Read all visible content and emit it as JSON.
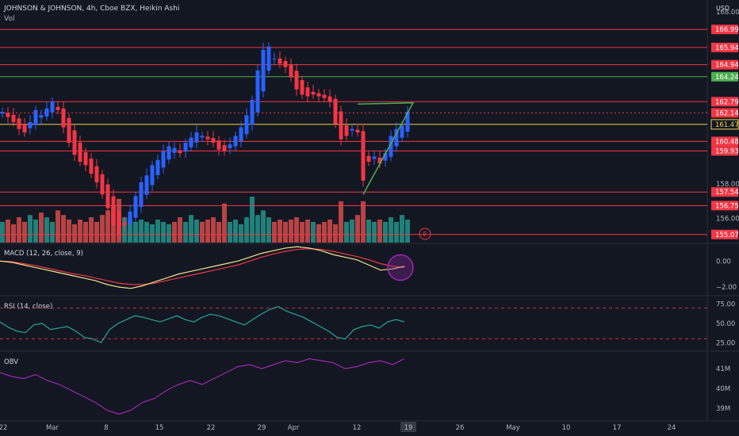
{
  "header": {
    "symbol_line": "JOHNSON & JOHNSON, 4h, Cboe BZX, Heikin Ashi",
    "vol_label": "Vol",
    "currency": "USD"
  },
  "colors": {
    "background": "#131722",
    "up": "#2962ff",
    "down": "#f23645",
    "vol_up": "#26a69a",
    "vol_down": "#ef5350",
    "level_red": "#f23645",
    "level_green": "#4caf50",
    "level_yellow": "#f2d44a",
    "pattern_green": "#4caf50",
    "macd": "#f0e68c",
    "signal": "#f23645",
    "rsi": "#26a69a",
    "obv": "#9c27b0",
    "highlight": "#9c27b0"
  },
  "chart_data": {
    "type": "candlestick",
    "price_axis": {
      "ylim": [
        154.6,
        168.7
      ],
      "ticks": [
        "168.00",
        "158.00",
        "156.00"
      ]
    },
    "x_axis": {
      "ticks": [
        "22",
        "Mar",
        "8",
        "15",
        "22",
        "29",
        "Apr",
        "12",
        "19",
        "26",
        "May",
        "10",
        "17",
        "24"
      ],
      "highlight_tick": "19"
    },
    "levels": [
      {
        "label": "166.99",
        "value": 166.99,
        "color": "red"
      },
      {
        "label": "165.94",
        "value": 165.94,
        "color": "red"
      },
      {
        "label": "164.94",
        "value": 164.94,
        "color": "red"
      },
      {
        "label": "164.24",
        "value": 164.24,
        "color": "green"
      },
      {
        "label": "162.79",
        "value": 162.79,
        "color": "red"
      },
      {
        "label": "162.14",
        "value": 162.14,
        "color": "red",
        "dashed": true
      },
      {
        "label": "161.47",
        "value": 161.47,
        "color": "yellow"
      },
      {
        "label": "160.48",
        "value": 160.48,
        "color": "red"
      },
      {
        "label": "159.93",
        "value": 159.93,
        "color": "red"
      },
      {
        "label": "157.54",
        "value": 157.54,
        "color": "red"
      },
      {
        "label": "156.75",
        "value": 156.75,
        "color": "red"
      },
      {
        "label": "155.07",
        "value": 155.07,
        "color": "red"
      }
    ],
    "price_series": [
      162.2,
      161.9,
      161.6,
      161.2,
      161.0,
      161.6,
      162.3,
      162.0,
      162.4,
      162.8,
      162.3,
      161.3,
      160.4,
      159.7,
      159.3,
      159.1,
      158.6,
      158.1,
      157.4,
      156.6,
      155.6,
      155.1,
      155.6,
      156.4,
      157.3,
      158.1,
      158.5,
      159.1,
      159.4,
      159.9,
      160.2,
      160.1,
      159.8,
      160.4,
      160.7,
      161.0,
      160.8,
      160.6,
      160.4,
      160.0,
      159.9,
      160.3,
      160.8,
      161.3,
      162.0,
      162.9,
      164.6,
      165.8,
      166.0,
      165.3,
      165.0,
      164.8,
      164.2,
      163.5,
      163.2,
      163.1,
      163.2,
      163.1,
      163.0,
      162.8,
      161.5,
      160.6,
      160.8,
      161.2,
      161.0,
      158.2,
      159.3,
      159.6,
      159.2,
      159.8,
      160.8,
      161.2,
      161.4,
      162.2
    ],
    "volume": [
      0.45,
      0.5,
      0.4,
      0.55,
      0.45,
      0.6,
      0.5,
      0.65,
      0.55,
      0.45,
      0.7,
      0.6,
      0.5,
      0.4,
      0.5,
      0.45,
      0.55,
      0.45,
      0.6,
      0.7,
      0.8,
      0.95,
      0.55,
      0.5,
      0.45,
      0.5,
      0.45,
      0.4,
      0.5,
      0.45,
      0.4,
      0.45,
      0.55,
      0.45,
      0.6,
      0.5,
      0.45,
      0.5,
      0.55,
      0.45,
      0.85,
      0.45,
      0.5,
      0.4,
      0.55,
      1.0,
      0.6,
      0.7,
      0.55,
      0.45,
      0.5,
      0.45,
      0.5,
      0.55,
      0.45,
      0.5,
      0.45,
      0.4,
      0.45,
      0.5,
      0.4,
      0.9,
      0.45,
      0.5,
      0.6,
      0.9,
      0.5,
      0.45,
      0.5,
      0.45,
      0.55,
      0.45,
      0.6,
      0.5
    ],
    "triangle": {
      "apex_idx": 74,
      "apex_price": 162.72,
      "top_start_idx": 64,
      "top_start_price": 162.65,
      "bottom_start_idx": 65,
      "bottom_start_price": 157.4
    },
    "earnings_marker": {
      "label": "E",
      "idx": 76
    },
    "indicators": [
      {
        "name": "macd",
        "label": "MACD (12, 26, close, 9)",
        "ylim": [
          -2.6,
          1.3
        ],
        "ticks": [
          "0.00",
          "−2.00"
        ],
        "tick_values": [
          0,
          -2
        ],
        "macd": [
          0.0,
          -0.1,
          -0.3,
          -0.5,
          -0.7,
          -0.9,
          -1.1,
          -1.3,
          -1.5,
          -1.8,
          -2.0,
          -2.1,
          -1.9,
          -1.6,
          -1.3,
          -1.0,
          -0.8,
          -0.6,
          -0.4,
          -0.2,
          0.0,
          0.3,
          0.6,
          0.8,
          1.0,
          1.1,
          1.0,
          0.8,
          0.5,
          0.3,
          0.1,
          -0.3,
          -0.7,
          -0.6,
          -0.4
        ],
        "signal": [
          0.0,
          -0.05,
          -0.2,
          -0.35,
          -0.55,
          -0.75,
          -0.95,
          -1.1,
          -1.3,
          -1.5,
          -1.7,
          -1.8,
          -1.8,
          -1.7,
          -1.5,
          -1.3,
          -1.1,
          -0.9,
          -0.7,
          -0.5,
          -0.3,
          0.0,
          0.3,
          0.55,
          0.75,
          0.9,
          0.95,
          0.9,
          0.75,
          0.55,
          0.35,
          0.1,
          -0.2,
          -0.4,
          -0.5
        ]
      },
      {
        "name": "rsi",
        "label": "RSI (14, close)",
        "ylim": [
          15,
          85
        ],
        "ticks": [
          "75.00",
          "50.00",
          "25.00"
        ],
        "tick_values": [
          75,
          50,
          25
        ],
        "bands": [
          70,
          30
        ],
        "values": [
          52,
          45,
          40,
          38,
          48,
          50,
          42,
          44,
          46,
          40,
          32,
          30,
          25,
          42,
          50,
          55,
          60,
          58,
          55,
          52,
          56,
          60,
          55,
          52,
          58,
          62,
          60,
          56,
          52,
          48,
          55,
          62,
          68,
          72,
          66,
          62,
          58,
          52,
          46,
          40,
          32,
          30,
          42,
          46,
          48,
          44,
          52,
          55,
          52
        ]
      },
      {
        "name": "obv",
        "label": "OBV",
        "ylim": [
          38.4,
          41.8
        ],
        "ticks": [
          "41M",
          "40M",
          "39M"
        ],
        "tick_values": [
          41,
          40,
          39
        ],
        "values": [
          40.8,
          40.6,
          40.5,
          40.7,
          40.4,
          40.2,
          39.9,
          39.6,
          39.3,
          38.9,
          38.7,
          38.9,
          39.3,
          39.5,
          39.9,
          40.2,
          40.4,
          40.2,
          40.5,
          40.8,
          41.1,
          41.2,
          41.0,
          41.2,
          41.4,
          41.3,
          41.5,
          41.4,
          41.3,
          41.0,
          41.1,
          41.3,
          41.4,
          41.2,
          41.5
        ]
      }
    ]
  }
}
